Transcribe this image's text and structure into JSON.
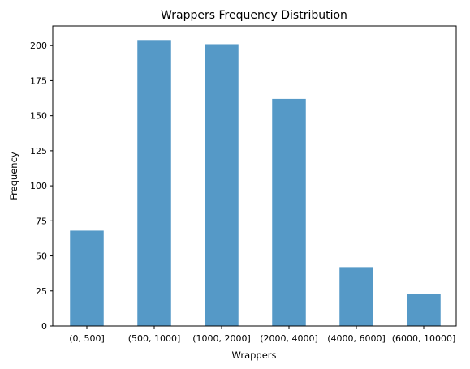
{
  "chart_data": {
    "type": "bar",
    "title": "Wrappers Frequency Distribution",
    "xlabel": "Wrappers",
    "ylabel": "Frequency",
    "categories": [
      "(0, 500]",
      "(500, 1000]",
      "(1000, 2000]",
      "(2000, 4000]",
      "(4000, 6000]",
      "(6000, 10000]"
    ],
    "values": [
      68,
      204,
      201,
      162,
      42,
      23
    ],
    "ylim": [
      0,
      214
    ],
    "yticks": [
      0,
      25,
      50,
      75,
      100,
      125,
      150,
      175,
      200
    ],
    "bar_color": "#5599c7",
    "grid": false,
    "legend": "none"
  }
}
